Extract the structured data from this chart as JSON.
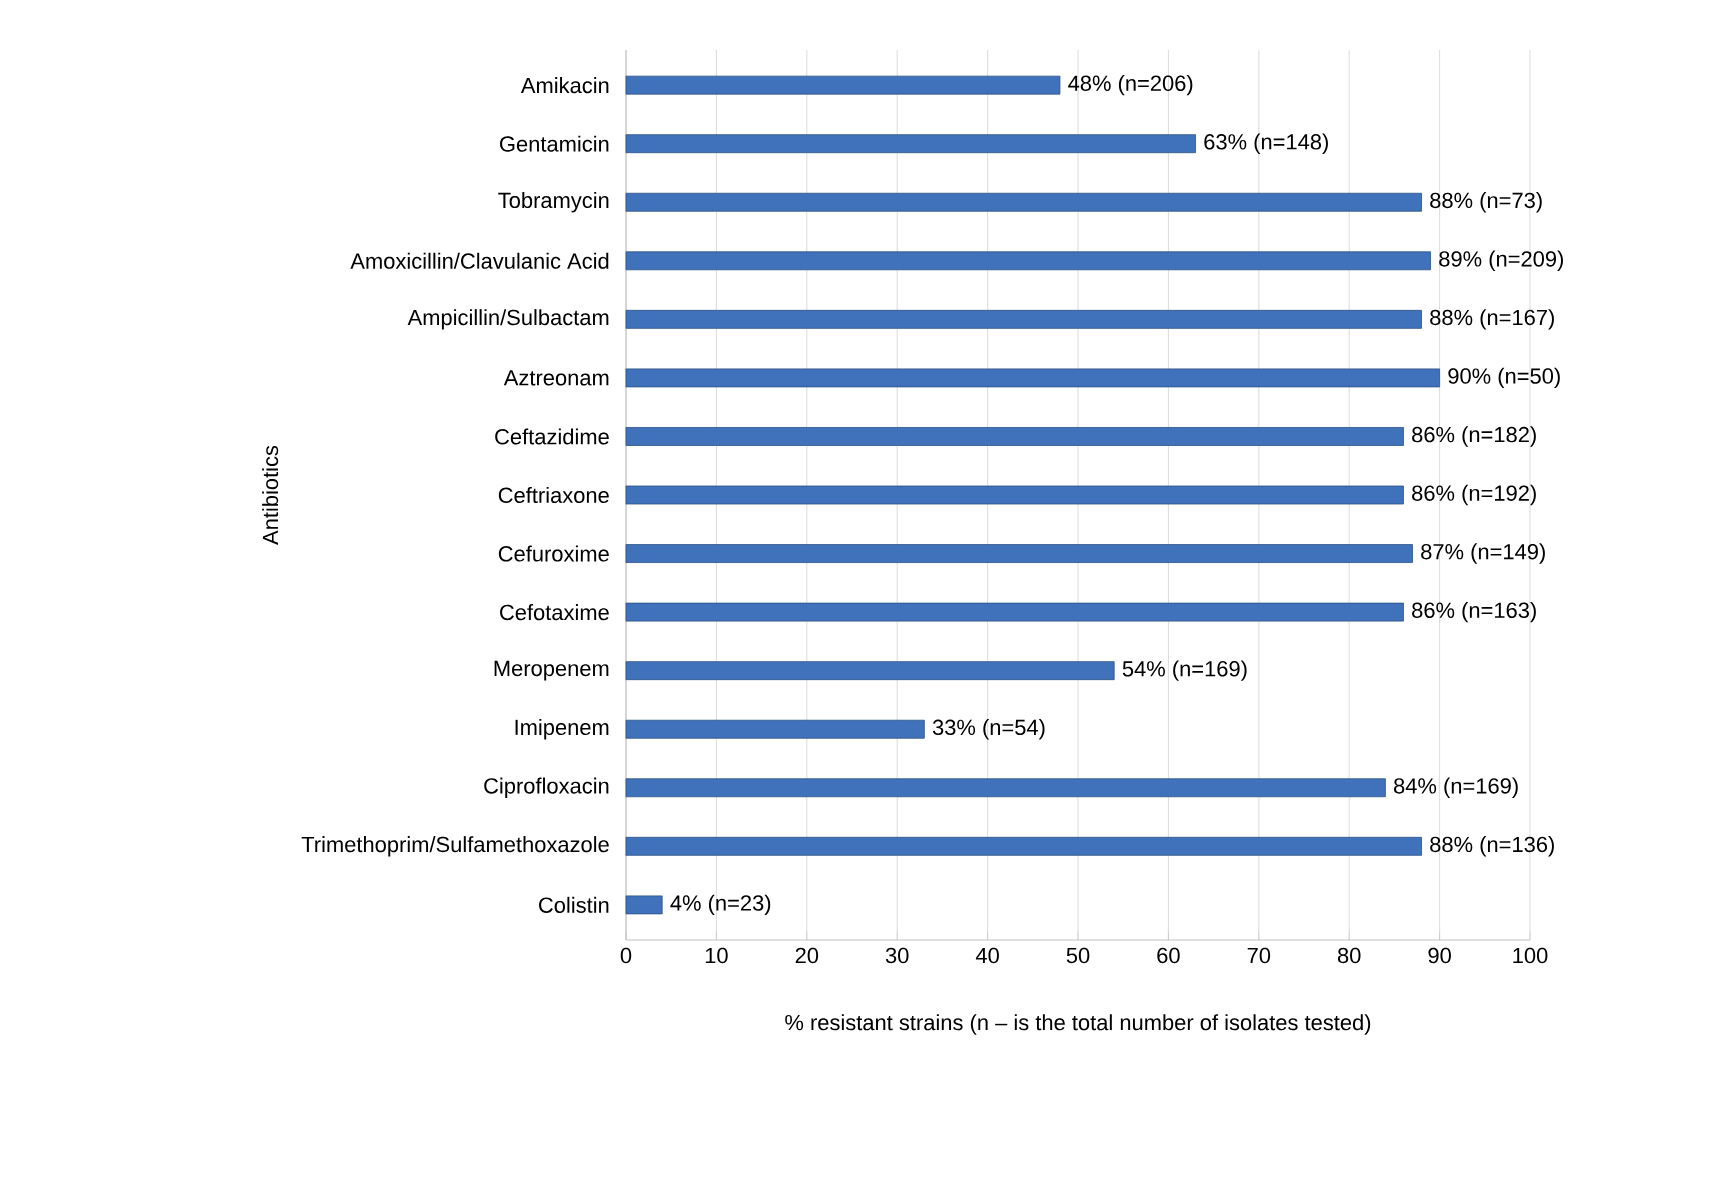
{
  "chart_data": {
    "type": "bar",
    "orientation": "horizontal",
    "xlabel": "% resistant strains (n – is the total number of isolates tested)",
    "ylabel": "Antibiotics",
    "categories": [
      "Amikacin",
      "Gentamicin",
      "Tobramycin",
      "Amoxicillin/Clavulanic Acid",
      "Ampicillin/Sulbactam",
      "Aztreonam",
      "Ceftazidime",
      "Ceftriaxone",
      "Cefuroxime",
      "Cefotaxime",
      "Meropenem",
      "Imipenem",
      "Ciprofloxacin",
      "Trimethoprim/Sulfamethoxazole",
      "Colistin"
    ],
    "values": [
      48,
      63,
      88,
      89,
      88,
      90,
      86,
      86,
      87,
      86,
      54,
      33,
      84,
      88,
      4
    ],
    "value_labels": [
      "48% (n=206)",
      "63% (n=148)",
      "88% (n=73)",
      "89% (n=209)",
      "88% (n=167)",
      "90% (n=50)",
      "86% (n=182)",
      "86% (n=192)",
      "87% (n=149)",
      "86% (n=163)",
      "54% (n=169)",
      "33% (n=54)",
      "84% (n=169)",
      "88% (n=136)",
      "4% (n=23)"
    ],
    "color": "#3f72bb",
    "xlim": [
      0,
      100
    ],
    "xticks": [
      0,
      10,
      20,
      30,
      40,
      50,
      60,
      70,
      80,
      90,
      100
    ],
    "grid": "x"
  }
}
